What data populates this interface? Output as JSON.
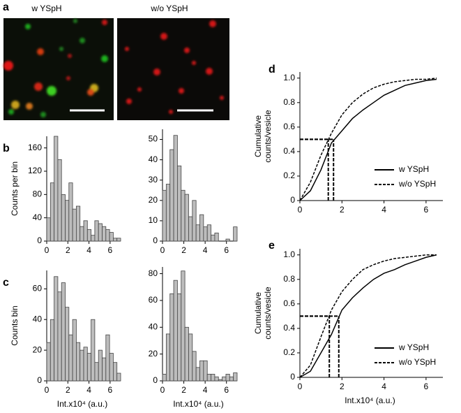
{
  "images": {
    "panel": "a",
    "labels": [
      "w YSpH",
      "w/o YSpH"
    ]
  },
  "chart_data": [
    {
      "type": "histogram",
      "panel": "b",
      "ylabel": "Counts per bin",
      "bins": [
        0,
        0.35,
        0.7,
        1.05,
        1.4,
        1.75,
        2.1,
        2.45,
        2.8,
        3.15,
        3.5,
        3.85,
        4.2,
        4.55,
        4.9,
        5.25,
        5.6,
        5.95,
        6.3,
        6.65,
        7
      ],
      "values": [
        40,
        100,
        180,
        140,
        80,
        70,
        100,
        55,
        60,
        25,
        35,
        20,
        10,
        35,
        30,
        25,
        20,
        15,
        5,
        5
      ],
      "color": "#bdbdbd",
      "xlim": [
        0,
        7
      ],
      "xticks": [
        0,
        2,
        4,
        6
      ],
      "ylim": [
        0,
        180
      ],
      "yticks": [
        0,
        40,
        80,
        120,
        160
      ]
    },
    {
      "type": "histogram",
      "bins": [
        0,
        0.35,
        0.7,
        1.05,
        1.4,
        1.75,
        2.1,
        2.45,
        2.8,
        3.15,
        3.5,
        3.85,
        4.2,
        4.55,
        4.9,
        5.25,
        5.6,
        5.95,
        6.3,
        6.65,
        7
      ],
      "values": [
        25,
        28,
        45,
        52,
        37,
        25,
        23,
        12,
        20,
        8,
        13,
        7,
        8,
        3,
        4,
        0,
        0,
        1,
        0,
        7
      ],
      "color": "#bdbdbd",
      "xlim": [
        0,
        7
      ],
      "xticks": [
        0,
        2,
        4,
        6
      ],
      "ylim": [
        0,
        55
      ],
      "yticks": [
        0,
        10,
        20,
        30,
        40,
        50
      ]
    },
    {
      "type": "histogram",
      "panel": "c",
      "ylabel": "Counts bin",
      "xlabel": "Int.x10⁴ (a.u.)",
      "bins": [
        0,
        0.35,
        0.7,
        1.05,
        1.4,
        1.75,
        2.1,
        2.45,
        2.8,
        3.15,
        3.5,
        3.85,
        4.2,
        4.55,
        4.9,
        5.25,
        5.6,
        5.95,
        6.3,
        6.65,
        7
      ],
      "values": [
        25,
        40,
        68,
        58,
        64,
        48,
        30,
        40,
        25,
        20,
        22,
        18,
        40,
        12,
        20,
        15,
        30,
        18,
        12,
        5
      ],
      "color": "#bdbdbd",
      "xlim": [
        0,
        7
      ],
      "xticks": [
        0,
        2,
        4,
        6
      ],
      "ylim": [
        0,
        72
      ],
      "yticks": [
        0,
        20,
        40,
        60
      ]
    },
    {
      "type": "histogram",
      "xlabel": "Int.x10⁴ (a.u.)",
      "bins": [
        0,
        0.35,
        0.7,
        1.05,
        1.4,
        1.75,
        2.1,
        2.45,
        2.8,
        3.15,
        3.5,
        3.85,
        4.2,
        4.55,
        4.9,
        5.25,
        5.6,
        5.95,
        6.3,
        6.65,
        7
      ],
      "values": [
        5,
        35,
        65,
        75,
        65,
        82,
        40,
        35,
        22,
        10,
        15,
        15,
        5,
        5,
        3,
        1,
        3,
        5,
        3,
        6
      ],
      "color": "#bdbdbd",
      "xlim": [
        0,
        7
      ],
      "xticks": [
        0,
        2,
        4,
        6
      ],
      "ylim": [
        0,
        85
      ],
      "yticks": [
        0,
        20,
        40,
        60,
        80
      ]
    },
    {
      "type": "line",
      "panel": "d",
      "ylabel": [
        "Cumulative",
        "counts/vesicle"
      ],
      "legend": "lower right",
      "x": [
        0,
        0.5,
        1,
        1.5,
        2,
        2.5,
        3,
        3.5,
        4,
        4.5,
        5,
        5.5,
        6,
        6.5
      ],
      "series": [
        {
          "name": "w YSpH",
          "color": "#000000",
          "dash": false,
          "values": [
            0,
            0.08,
            0.25,
            0.47,
            0.57,
            0.67,
            0.74,
            0.8,
            0.86,
            0.9,
            0.94,
            0.96,
            0.98,
            0.99
          ]
        },
        {
          "name": "w/o YSpH",
          "color": "#000000",
          "dash": true,
          "values": [
            0,
            0.15,
            0.37,
            0.55,
            0.7,
            0.8,
            0.87,
            0.92,
            0.95,
            0.97,
            0.98,
            0.99,
            0.99,
            1.0
          ]
        }
      ],
      "median_y": 0.5,
      "medians": [
        1.6,
        1.35
      ],
      "xlim": [
        0,
        6.8
      ],
      "xticks": [
        0,
        2,
        4,
        6
      ],
      "ylim": [
        0,
        1.05
      ],
      "yticks": [
        0,
        0.2,
        0.4,
        0.6,
        0.8,
        {
          "value": 1,
          "label": "1.0"
        }
      ]
    },
    {
      "type": "line",
      "panel": "e",
      "ylabel": [
        "Cumulative",
        "counts/vesicle"
      ],
      "xlabel": "Int.x10⁴ (a.u.)",
      "legend": "lower right",
      "x": [
        0,
        0.5,
        1,
        1.5,
        2,
        2.5,
        3,
        3.5,
        4,
        4.5,
        5,
        5.5,
        6,
        6.5
      ],
      "series": [
        {
          "name": "w YSpH",
          "color": "#000000",
          "dash": false,
          "values": [
            0,
            0.05,
            0.2,
            0.35,
            0.55,
            0.65,
            0.73,
            0.8,
            0.85,
            0.88,
            0.92,
            0.95,
            0.98,
            1.0
          ]
        },
        {
          "name": "w/o YSpH",
          "color": "#000000",
          "dash": true,
          "values": [
            0,
            0.1,
            0.33,
            0.55,
            0.7,
            0.8,
            0.88,
            0.92,
            0.95,
            0.97,
            0.98,
            0.99,
            1.0,
            1.0
          ]
        }
      ],
      "median_y": 0.5,
      "medians": [
        1.85,
        1.4
      ],
      "xlim": [
        0,
        6.8
      ],
      "xticks": [
        0,
        2,
        4,
        6
      ],
      "ylim": [
        0,
        1.05
      ],
      "yticks": [
        0,
        0.2,
        0.4,
        0.6,
        0.8,
        {
          "value": 1,
          "label": "1.0"
        }
      ]
    }
  ]
}
